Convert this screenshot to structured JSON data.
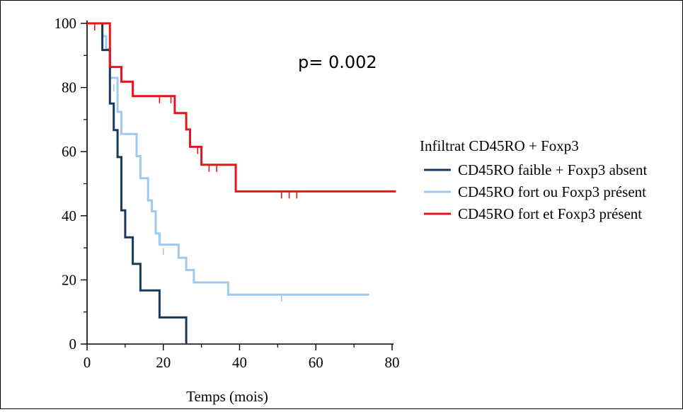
{
  "chart_data": {
    "type": "line",
    "subtype": "kaplan-meier",
    "xlabel": "Temps (mois)",
    "ylabel": "",
    "xlim": [
      0,
      80
    ],
    "ylim": [
      0,
      100
    ],
    "xticks": [
      0,
      20,
      40,
      60,
      80
    ],
    "yticks": [
      0,
      20,
      40,
      60,
      80,
      100
    ],
    "x_tick_labels": [
      "0",
      "20",
      "40",
      "60",
      "80"
    ],
    "y_tick_labels": [
      "0",
      "20",
      "40",
      "60",
      "80",
      "100"
    ],
    "grid": false,
    "legend_position": "right",
    "annotation": "p= 0.002",
    "legend_title": "Infiltrat CD45RO + Foxp3",
    "series": [
      {
        "name": "CD45RO faible + Foxp3 absent",
        "color": "#1a3a5c",
        "steps": [
          [
            0,
            100
          ],
          [
            4,
            100
          ],
          [
            4,
            91.7
          ],
          [
            6,
            91.7
          ],
          [
            6,
            75
          ],
          [
            7,
            75
          ],
          [
            7,
            66.7
          ],
          [
            8,
            66.7
          ],
          [
            8,
            58.3
          ],
          [
            9,
            58.3
          ],
          [
            9,
            41.7
          ],
          [
            10,
            41.7
          ],
          [
            10,
            33.3
          ],
          [
            12,
            33.3
          ],
          [
            12,
            25
          ],
          [
            14,
            25
          ],
          [
            14,
            16.7
          ],
          [
            19,
            16.7
          ],
          [
            19,
            8.3
          ],
          [
            26,
            8.3
          ],
          [
            26,
            0
          ]
        ],
        "censored": [
          [
            4,
            98
          ]
        ]
      },
      {
        "name": "CD45RO fort ou Foxp3 présent",
        "color": "#9fc9ef",
        "steps": [
          [
            0,
            100
          ],
          [
            4,
            100
          ],
          [
            4,
            96
          ],
          [
            5,
            96
          ],
          [
            5,
            92
          ],
          [
            6,
            92
          ],
          [
            6,
            83
          ],
          [
            8,
            83
          ],
          [
            8,
            72.4
          ],
          [
            9,
            72.4
          ],
          [
            9,
            65.5
          ],
          [
            13,
            65.5
          ],
          [
            13,
            58.6
          ],
          [
            14,
            58.6
          ],
          [
            14,
            51.7
          ],
          [
            16,
            51.7
          ],
          [
            16,
            44.8
          ],
          [
            17,
            44.8
          ],
          [
            17,
            41.4
          ],
          [
            18,
            41.4
          ],
          [
            18,
            34.5
          ],
          [
            19,
            34.5
          ],
          [
            19,
            31
          ],
          [
            24,
            31
          ],
          [
            24,
            26.9
          ],
          [
            26,
            26.9
          ],
          [
            26,
            23.1
          ],
          [
            28,
            23.1
          ],
          [
            28,
            19.2
          ],
          [
            37,
            19.2
          ],
          [
            37,
            15.4
          ],
          [
            74,
            15.4
          ]
        ],
        "censored": [
          [
            7,
            81
          ],
          [
            20,
            30
          ],
          [
            51,
            15.4
          ]
        ]
      },
      {
        "name": "CD45RO fort et Foxp3 présent",
        "color": "#e8141b",
        "steps": [
          [
            0,
            100
          ],
          [
            6,
            100
          ],
          [
            6,
            86.4
          ],
          [
            9,
            86.4
          ],
          [
            9,
            81.8
          ],
          [
            12,
            81.8
          ],
          [
            12,
            77.3
          ],
          [
            23,
            77.3
          ],
          [
            23,
            72
          ],
          [
            26,
            72
          ],
          [
            26,
            66.9
          ],
          [
            27,
            66.9
          ],
          [
            27,
            61.5
          ],
          [
            30,
            61.5
          ],
          [
            30,
            55.9
          ],
          [
            39,
            55.9
          ],
          [
            39,
            47.6
          ],
          [
            81,
            47.6
          ]
        ],
        "censored": [
          [
            2,
            100
          ],
          [
            19,
            77.3
          ],
          [
            22,
            77.3
          ],
          [
            29,
            61.5
          ],
          [
            32,
            55.9
          ],
          [
            34,
            55.9
          ],
          [
            51,
            47.6
          ],
          [
            53,
            47.6
          ],
          [
            55,
            47.6
          ]
        ]
      }
    ]
  }
}
